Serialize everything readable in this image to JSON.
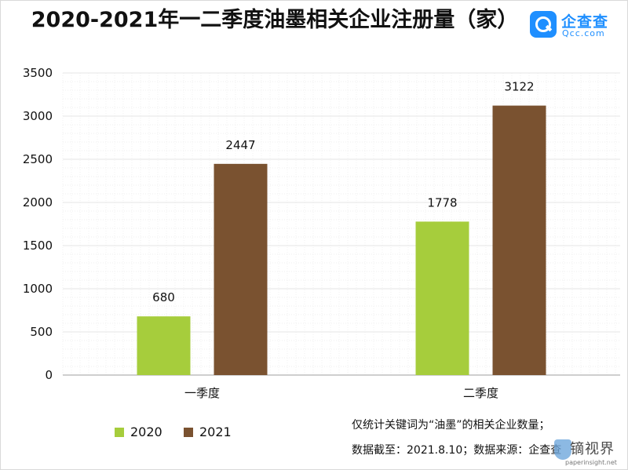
{
  "title": "2020-2021年一二季度油墨相关企业注册量（家）",
  "logo": {
    "name_cn": "企查查",
    "name_en": "Qcc.com"
  },
  "colors": {
    "series_2020": "#a6cd3c",
    "series_2021": "#7a5230",
    "grid": "#e6e6e6",
    "axis": "#bfbfbf"
  },
  "chart_data": {
    "type": "bar",
    "categories": [
      "一季度",
      "二季度"
    ],
    "series": [
      {
        "name": "2020",
        "values": [
          680,
          1778
        ]
      },
      {
        "name": "2021",
        "values": [
          2447,
          3122
        ]
      }
    ],
    "ylim": [
      0,
      3500
    ],
    "yticks": [
      "0",
      "500",
      "1000",
      "1500",
      "2000",
      "2500",
      "3000",
      "3500"
    ],
    "grid": true,
    "legend": "bottom-left"
  },
  "notes": [
    "仅统计关键词为“油墨”的相关企业数量；",
    "数据截至：2021.8.10；数据来源：企查查"
  ],
  "watermark": {
    "text": "镝视界",
    "url": "paperinsight.net"
  }
}
